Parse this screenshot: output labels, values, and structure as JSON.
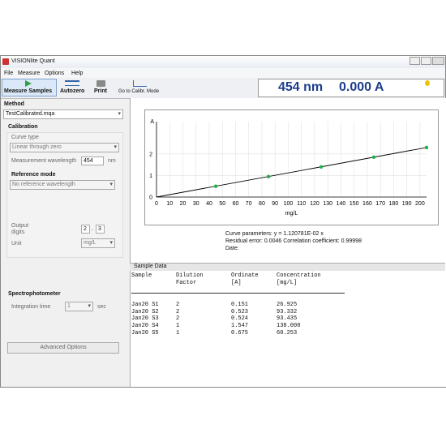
{
  "window": {
    "title": "VISIONlite Quant"
  },
  "menu": [
    "File",
    "Measure",
    "Options",
    "Help"
  ],
  "toolbar": [
    "Measure Samples",
    "Autozero",
    "Print",
    "Go to Calibr. Mode"
  ],
  "display": {
    "wavelength": "454 nm",
    "absorbance": "0.000 A"
  },
  "method": {
    "label": "Method",
    "file": "TestCalibrated.mqa"
  },
  "calibration": {
    "title": "Calibration",
    "curve_type_label": "Curve type",
    "curve_type": "Linear through zero",
    "wavelength_label": "Measurement wavelength",
    "wavelength": "454",
    "wavelength_unit": "nm",
    "reference_label": "Reference mode",
    "reference": "No reference wavelength",
    "output_label_1": "Output",
    "output_label_2": "digits",
    "digits_int": "2",
    "digits_sep": ".",
    "digits_dec": "3",
    "unit_label": "Unit",
    "unit": "mg/L"
  },
  "spectrophotometer": {
    "title": "Spectrophotometer",
    "integration_label": "Integration time",
    "integration": "1",
    "integration_unit": "sec"
  },
  "advanced_button": "Advanced Options",
  "chart_data": {
    "type": "line",
    "x_label": "mg/L",
    "y_label": "A",
    "series": [
      {
        "color": "#000000",
        "x": [
          0,
          205
        ],
        "values": [
          0,
          2.3
        ]
      },
      {
        "color": "#22b04c",
        "markers": true,
        "x": [
          45,
          85,
          125,
          165,
          205
        ],
        "values": [
          0.5,
          0.95,
          1.4,
          1.85,
          2.3
        ]
      }
    ],
    "xlim": [
      0,
      205
    ],
    "ylim": [
      0,
      3.5
    ],
    "xticks": [
      0,
      10,
      20,
      30,
      40,
      50,
      60,
      70,
      80,
      90,
      100,
      110,
      120,
      130,
      140,
      150,
      160,
      170,
      180,
      190,
      200
    ],
    "yticks": [
      0,
      1,
      2
    ],
    "grid": true
  },
  "curve_info": [
    "Curve parameters: y  =  1.120781E-02 x",
    "Residual error: 0.0046     Correlation coefficient: 0.99998",
    "Date:"
  ],
  "sample_data": {
    "title": "Sample Data",
    "columns": [
      [
        "Sample"
      ],
      [
        "Dilution",
        "Factor"
      ],
      [
        "Ordinate",
        "[A]"
      ],
      [
        "Concentration",
        "[mg/L]"
      ]
    ],
    "rows": [
      [
        "Jan20 S1",
        "2",
        "0.151",
        "26.925"
      ],
      [
        "Jan20 S2",
        "2",
        "0.523",
        "93.332"
      ],
      [
        "Jan20 S3",
        "2",
        "0.524",
        "93.435"
      ],
      [
        "Jan20 S4",
        "1",
        "1.547",
        "138.000"
      ],
      [
        "Jan20 S5",
        "1",
        "0.675",
        "60.253"
      ]
    ]
  }
}
